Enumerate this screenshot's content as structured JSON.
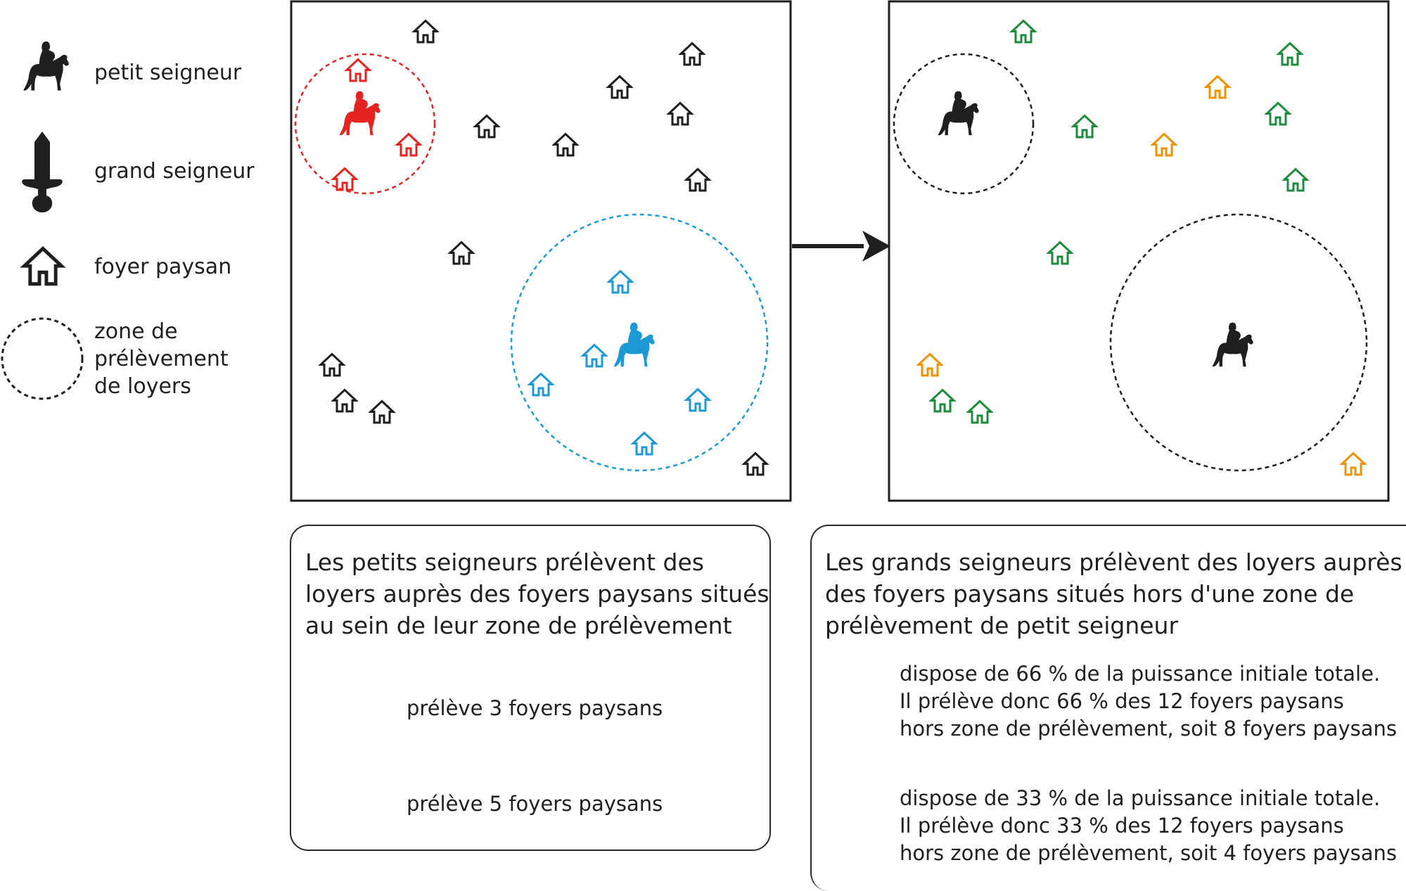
{
  "legend": {
    "petit_seigneur": "petit seigneur",
    "grand_seigneur": "grand seigneur",
    "foyer_paysan": "foyer paysan",
    "zone_lines": [
      "zone de",
      "prélèvement",
      "de loyers"
    ]
  },
  "caption_left": {
    "lines": [
      "Les petits seigneurs prélèvent des",
      "loyers auprès des foyers paysans situés",
      "au sein de leur zone de prélèvement"
    ],
    "red_text": "prélève 3 foyers paysans",
    "blue_text": "prélève 5 foyers paysans"
  },
  "caption_right": {
    "lines": [
      "Les grands seigneurs prélèvent des loyers auprès",
      "des foyers paysans situés hors d'une zone de",
      "prélèvement de petit seigneur"
    ],
    "green_lines": [
      "dispose de 66 % de la puissance initiale totale.",
      "Il prélève donc 66 % des 12 foyers paysans",
      "hors zone de prélèvement, soit 8 foyers paysans"
    ],
    "orange_lines": [
      "dispose de 33 % de la puissance initiale totale.",
      "Il prélève donc 33 % des 12 foyers paysans",
      "hors zone de prélèvement, soit 4 foyers paysans"
    ]
  },
  "colors": {
    "red": "#e52421",
    "blue": "#1d9ad6",
    "green": "#3aaa5c",
    "dark_green": "#1e8a3c",
    "orange": "#f39200",
    "black": "#1f1f1f"
  },
  "icons": {
    "knight": "mounted-knight-icon",
    "sword": "sword-icon",
    "house": "house-icon"
  }
}
